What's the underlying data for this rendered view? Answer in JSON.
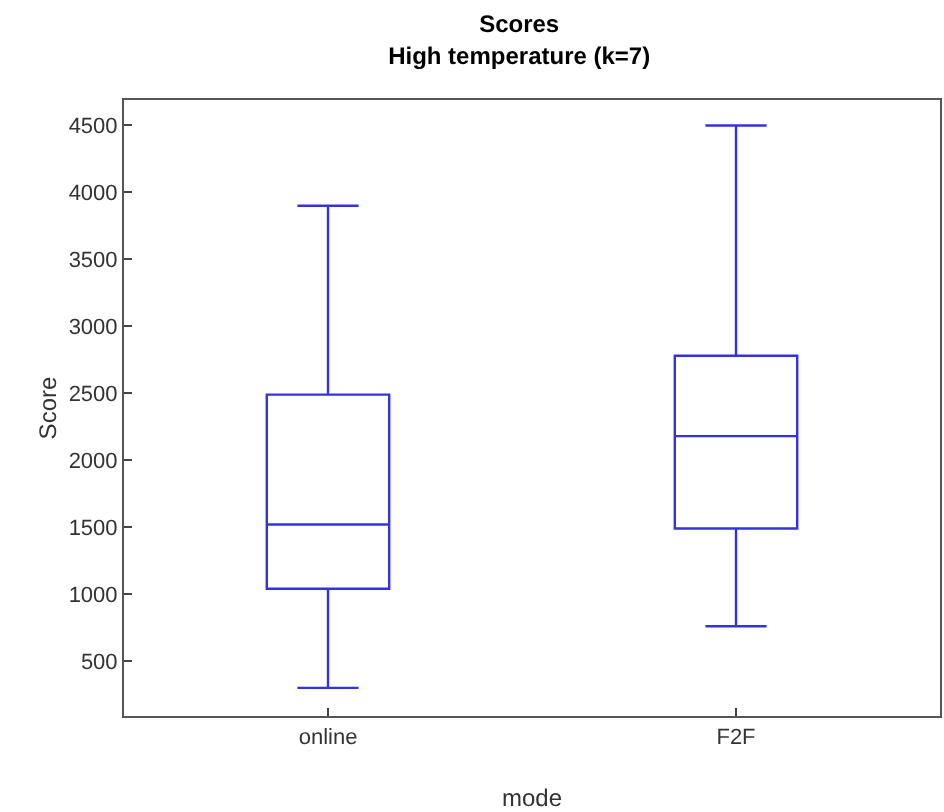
{
  "chart_data": {
    "type": "box",
    "title": "Scores",
    "subtitle": "High temperature (k=7)",
    "xlabel": "mode",
    "ylabel": "Score",
    "categories": [
      "online",
      "F2F"
    ],
    "color": "#3333dd",
    "boxes": [
      {
        "low": 300,
        "q1": 1040,
        "median": 1520,
        "q3": 2490,
        "high": 3900
      },
      {
        "low": 760,
        "q1": 1490,
        "median": 2180,
        "q3": 2780,
        "high": 4500
      }
    ],
    "ylim": [
      90,
      4690
    ],
    "yticks": [
      500,
      1000,
      1500,
      2000,
      2500,
      3000,
      3500,
      4000,
      4500
    ],
    "grid": false
  }
}
